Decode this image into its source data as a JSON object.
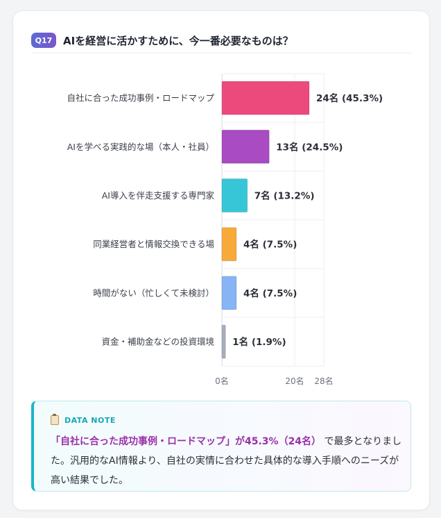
{
  "question": {
    "badge": "Q17",
    "title": "AIを経営に活かすために、今一番必要なものは？"
  },
  "chart_data": {
    "type": "bar",
    "orientation": "horizontal",
    "categories": [
      "自社に合った成功事例・ロードマップ",
      "AIを学べる実践的な場（本人・社員）",
      "AI導入を伴走支援する専門家",
      "同業経営者と情報交換できる場",
      "時間がない（忙しくて未検討）",
      "資金・補助金などの投資環境"
    ],
    "values": [
      24,
      13,
      7,
      4,
      4,
      1
    ],
    "value_labels": [
      "24名 (45.3%)",
      "13名 (24.5%)",
      "7名 (13.2%)",
      "4名 (7.5%)",
      "4名 (7.5%)",
      "1名 (1.9%)"
    ],
    "colors": [
      "#ec4a7d",
      "#a94bc2",
      "#36c6d8",
      "#f7aa3a",
      "#86b4f4",
      "#a7adbd"
    ],
    "xlim": [
      0,
      28
    ],
    "xticks": [
      "0名",
      "20名",
      "28名"
    ],
    "xtick_values": [
      0,
      20,
      28
    ],
    "grid": true
  },
  "note": {
    "heading": "DATA NOTE",
    "highlight": "「自社に合った成功事例・ロードマップ」が45.3%（24名）",
    "body": "で最多となりました。汎用的なAI情報より、自社の実情に合わせた具体的な導入手順へのニーズが高い結果でした。"
  }
}
